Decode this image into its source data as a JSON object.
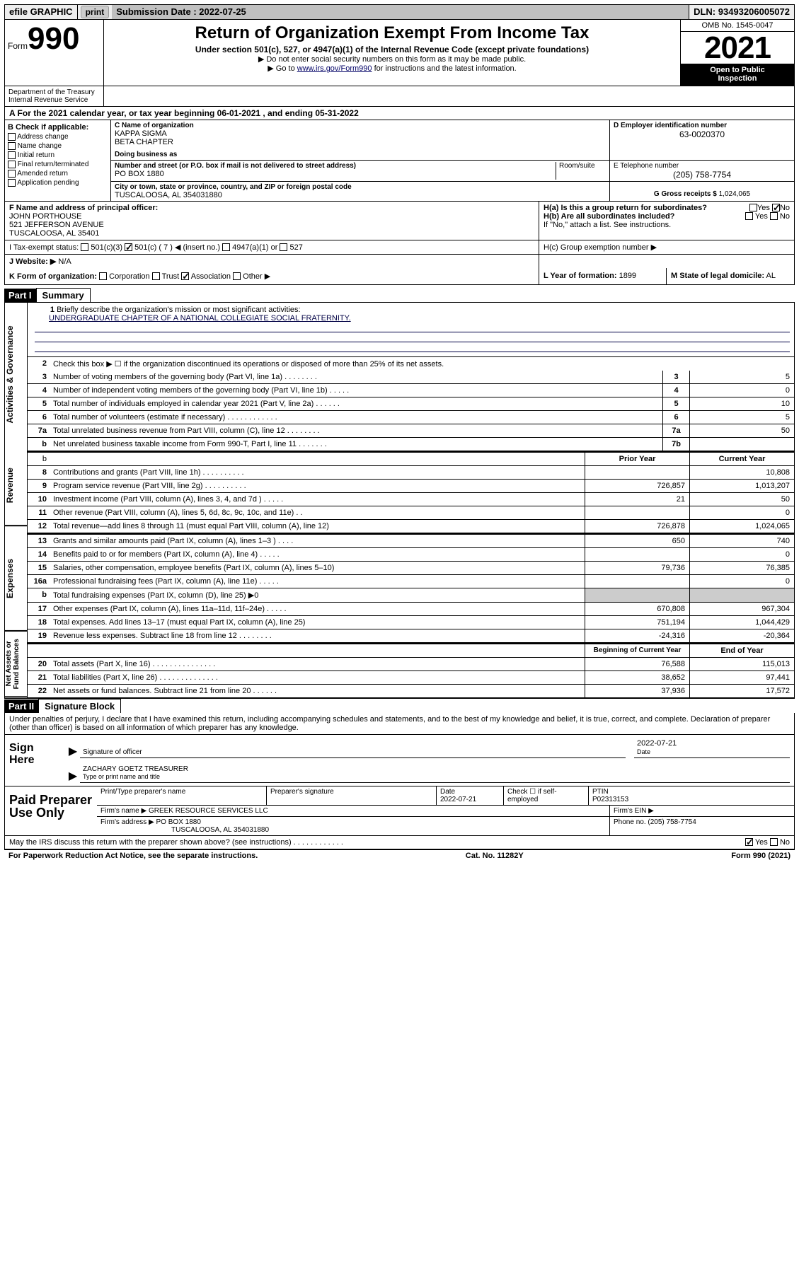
{
  "topbar": {
    "efile": "efile GRAPHIC",
    "print": "print",
    "submission_label": "Submission Date : ",
    "submission_date": "2022-07-25",
    "dln_label": "DLN: ",
    "dln": "93493206005072"
  },
  "header": {
    "form_word": "Form",
    "form_num": "990",
    "title": "Return of Organization Exempt From Income Tax",
    "sub": "Under section 501(c), 527, or 4947(a)(1) of the Internal Revenue Code (except private foundations)",
    "note1": "▶ Do not enter social security numbers on this form as it may be made public.",
    "note2a": "▶ Go to ",
    "note2_link": "www.irs.gov/Form990",
    "note2b": " for instructions and the latest information.",
    "omb": "OMB No. 1545-0047",
    "year": "2021",
    "open1": "Open to Public",
    "open2": "Inspection",
    "dept1": "Department of the Treasury",
    "dept2": "Internal Revenue Service"
  },
  "A": {
    "text": "A For the 2021 calendar year, or tax year beginning 06-01-2021    , and ending 05-31-2022"
  },
  "B": {
    "header": "B Check if applicable:",
    "items": [
      "Address change",
      "Name change",
      "Initial return",
      "Final return/terminated",
      "Amended return",
      "Application pending"
    ]
  },
  "C": {
    "name_label": "C Name of organization",
    "name1": "KAPPA SIGMA",
    "name2": "BETA CHAPTER",
    "dba_label": "Doing business as",
    "dba": "",
    "addr_label": "Number and street (or P.O. box if mail is not delivered to street address)",
    "room_label": "Room/suite",
    "addr": "PO BOX 1880",
    "city_label": "City or town, state or province, country, and ZIP or foreign postal code",
    "city": "TUSCALOOSA, AL  354031880"
  },
  "D": {
    "label": "D Employer identification number",
    "val": "63-0020370"
  },
  "E": {
    "label": "E Telephone number",
    "val": "(205) 758-7754"
  },
  "G": {
    "label": "G Gross receipts $",
    "val": "1,024,065"
  },
  "F": {
    "label": "F  Name and address of principal officer:",
    "name": "JOHN PORTHOUSE",
    "addr1": "521 JEFFERSON AVENUE",
    "addr2": "TUSCALOOSA, AL  35401"
  },
  "H": {
    "a": "H(a)  Is this a group return for subordinates?",
    "a_yes": "Yes",
    "a_no": "No",
    "b": "H(b)  Are all subordinates included?",
    "b_note": "If \"No,\" attach a list. See instructions.",
    "c": "H(c)  Group exemption number ▶"
  },
  "I": {
    "label": "I    Tax-exempt status:",
    "opt1": "501(c)(3)",
    "opt2": "501(c) ( 7 ) ◀ (insert no.)",
    "opt3": "4947(a)(1) or",
    "opt4": "527"
  },
  "J": {
    "label": "J   Website: ▶",
    "val": "N/A"
  },
  "K": {
    "label": "K Form of organization:",
    "opts": [
      "Corporation",
      "Trust",
      "Association",
      "Other ▶"
    ],
    "checked": 2,
    "L_label": "L Year of formation:",
    "L_val": "1899",
    "M_label": "M State of legal domicile:",
    "M_val": "AL"
  },
  "parts": {
    "p1_num": "Part I",
    "p1_title": "Summary",
    "p2_num": "Part II",
    "p2_title": "Signature Block"
  },
  "sidebars": [
    "Activities & Governance",
    "Revenue",
    "Expenses",
    "Net Assets or Fund Balances"
  ],
  "summary": {
    "line1_label": "Briefly describe the organization's mission or most significant activities:",
    "line1_val": "UNDERGRADUATE CHAPTER OF A NATIONAL COLLEGIATE SOCIAL FRATERNITY.",
    "line2": "Check this box ▶ ☐  if the organization discontinued its operations or disposed of more than 25% of its net assets.",
    "hdr_prior": "Prior Year",
    "hdr_current": "Current Year",
    "hdr_begin": "Beginning of Current Year",
    "hdr_end": "End of Year",
    "rows": [
      {
        "n": "3",
        "d": "Number of voting members of the governing body (Part VI, line 1a)   .    .    .    .    .    .    .    .",
        "box": "3",
        "v": "5"
      },
      {
        "n": "4",
        "d": "Number of independent voting members of the governing body (Part VI, line 1b)   .    .    .    .    .",
        "box": "4",
        "v": "0"
      },
      {
        "n": "5",
        "d": "Total number of individuals employed in calendar year 2021 (Part V, line 2a)   .    .    .    .    .    .",
        "box": "5",
        "v": "10"
      },
      {
        "n": "6",
        "d": "Total number of volunteers (estimate if necessary)   .    .    .    .    .    .    .    .    .    .    .    .",
        "box": "6",
        "v": "5"
      },
      {
        "n": "7a",
        "d": "Total unrelated business revenue from Part VIII, column (C), line 12   .    .    .    .    .    .    .    .",
        "box": "7a",
        "v": "50"
      },
      {
        "n": "b",
        "d": "Net unrelated business taxable income from Form 990-T, Part I, line 11   .    .    .    .    .    .    .",
        "box": "7b",
        "v": ""
      }
    ],
    "rev": [
      {
        "n": "8",
        "d": "Contributions and grants (Part VIII, line 1h)   .    .    .    .    .    .    .    .    .    .",
        "p": "",
        "c": "10,808"
      },
      {
        "n": "9",
        "d": "Program service revenue (Part VIII, line 2g)   .    .    .    .    .    .    .    .    .    .",
        "p": "726,857",
        "c": "1,013,207"
      },
      {
        "n": "10",
        "d": "Investment income (Part VIII, column (A), lines 3, 4, and 7d )   .    .    .    .    .",
        "p": "21",
        "c": "50"
      },
      {
        "n": "11",
        "d": "Other revenue (Part VIII, column (A), lines 5, 6d, 8c, 9c, 10c, and 11e)   .    .",
        "p": "",
        "c": "0"
      },
      {
        "n": "12",
        "d": "Total revenue—add lines 8 through 11 (must equal Part VIII, column (A), line 12)",
        "p": "726,878",
        "c": "1,024,065"
      }
    ],
    "exp": [
      {
        "n": "13",
        "d": "Grants and similar amounts paid (Part IX, column (A), lines 1–3 )   .    .    .    .",
        "p": "650",
        "c": "740"
      },
      {
        "n": "14",
        "d": "Benefits paid to or for members (Part IX, column (A), line 4)   .    .    .    .    .",
        "p": "",
        "c": "0"
      },
      {
        "n": "15",
        "d": "Salaries, other compensation, employee benefits (Part IX, column (A), lines 5–10)",
        "p": "79,736",
        "c": "76,385"
      },
      {
        "n": "16a",
        "d": "Professional fundraising fees (Part IX, column (A), line 11e)   .    .    .    .    .",
        "p": "",
        "c": "0"
      },
      {
        "n": "b",
        "d": "Total fundraising expenses (Part IX, column (D), line 25) ▶0",
        "p": "",
        "c": "",
        "gray": true
      },
      {
        "n": "17",
        "d": "Other expenses (Part IX, column (A), lines 11a–11d, 11f–24e)   .    .    .    .    .",
        "p": "670,808",
        "c": "967,304"
      },
      {
        "n": "18",
        "d": "Total expenses. Add lines 13–17 (must equal Part IX, column (A), line 25)",
        "p": "751,194",
        "c": "1,044,429"
      },
      {
        "n": "19",
        "d": "Revenue less expenses. Subtract line 18 from line 12   .    .    .    .    .    .    .    .",
        "p": "-24,316",
        "c": "-20,364"
      }
    ],
    "net": [
      {
        "n": "20",
        "d": "Total assets (Part X, line 16)   .    .    .    .    .    .    .    .    .    .    .    .    .    .    .",
        "p": "76,588",
        "c": "115,013"
      },
      {
        "n": "21",
        "d": "Total liabilities (Part X, line 26)   .    .    .    .    .    .    .    .    .    .    .    .    .    .",
        "p": "38,652",
        "c": "97,441"
      },
      {
        "n": "22",
        "d": "Net assets or fund balances. Subtract line 21 from line 20   .    .    .    .    .    .",
        "p": "37,936",
        "c": "17,572"
      }
    ]
  },
  "sig": {
    "text": "Under penalties of perjury, I declare that I have examined this return, including accompanying schedules and statements, and to the best of my knowledge and belief, it is true, correct, and complete. Declaration of preparer (other than officer) is based on all information of which preparer has any knowledge.",
    "sign_here": "Sign Here",
    "sig_of_officer": "Signature of officer",
    "date": "Date",
    "date_val": "2022-07-21",
    "name_title": "ZACHARY GOETZ  TREASURER",
    "name_label": "Type or print name and title",
    "paid": "Paid Preparer Use Only",
    "prep_name_label": "Print/Type preparer's name",
    "prep_sig_label": "Preparer's signature",
    "prep_date_label": "Date",
    "prep_date": "2022-07-21",
    "check_if": "Check ☐ if self-employed",
    "ptin_label": "PTIN",
    "ptin": "P02313153",
    "firm_name_label": "Firm's name    ▶",
    "firm_name": "GREEK RESOURCE SERVICES LLC",
    "firm_ein_label": "Firm's EIN ▶",
    "firm_addr_label": "Firm's address ▶",
    "firm_addr1": "PO BOX 1880",
    "firm_addr2": "TUSCALOOSA, AL  354031880",
    "phone_label": "Phone no.",
    "phone": "(205) 758-7754"
  },
  "footer": {
    "discuss": "May the IRS discuss this return with the preparer shown above? (see instructions)    .    .    .    .    .    .    .    .    .    .    .    .",
    "yes": "Yes",
    "no": "No",
    "pra": "For Paperwork Reduction Act Notice, see the separate instructions.",
    "cat": "Cat. No. 11282Y",
    "form": "Form 990 (2021)"
  }
}
